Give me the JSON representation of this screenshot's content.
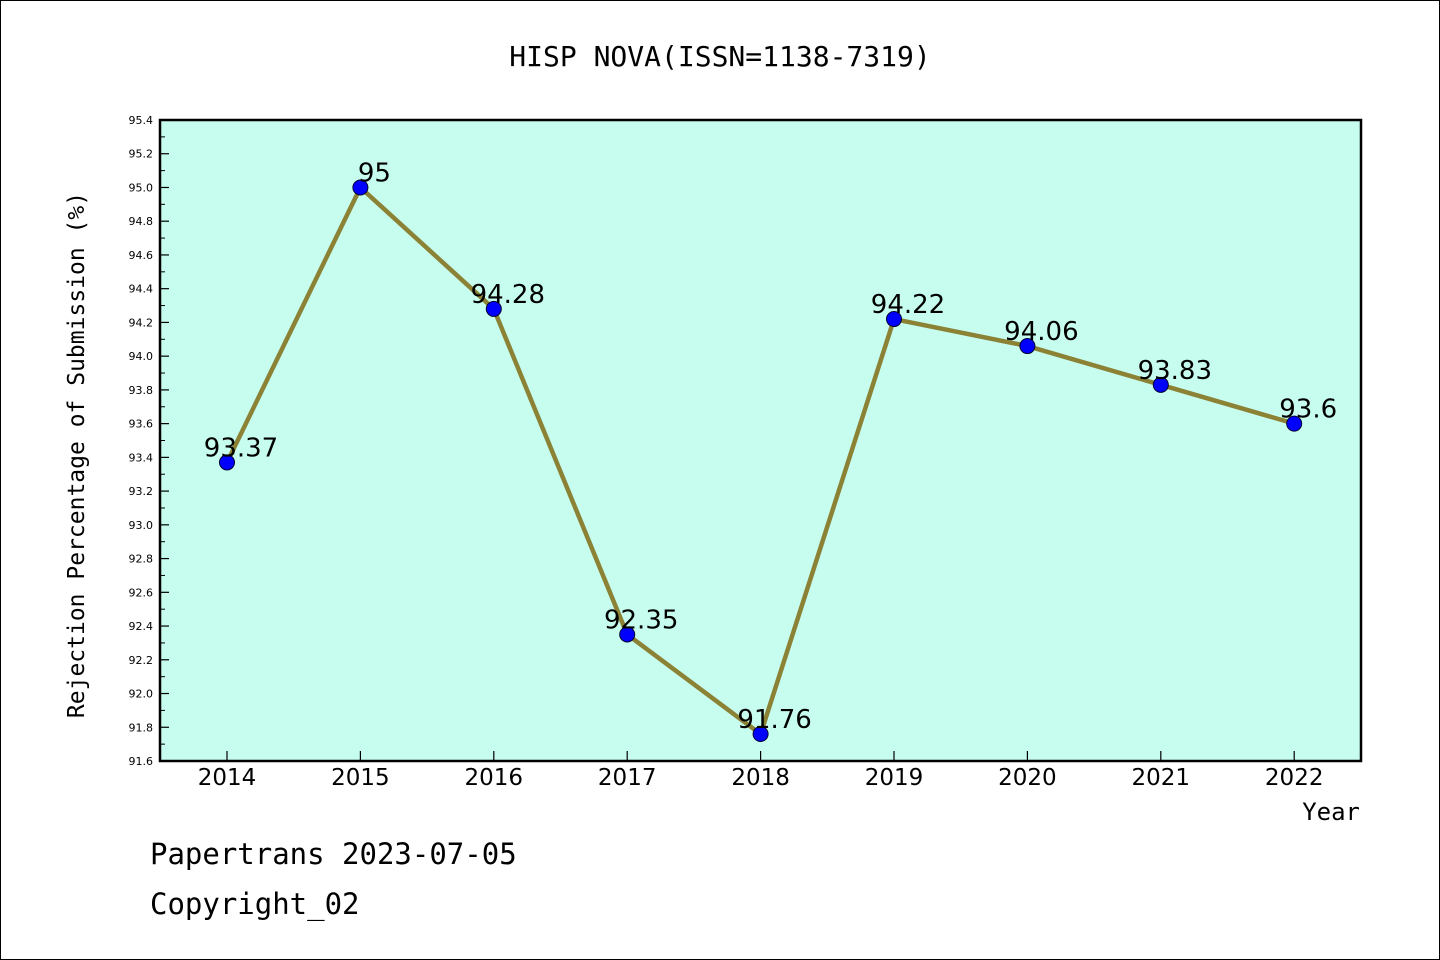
{
  "chart_data": {
    "type": "line",
    "title": "HISP NOVA(ISSN=1138-7319)",
    "xlabel": "Year",
    "ylabel": "Rejection Percentage of Submission (%)",
    "categories": [
      "2014",
      "2015",
      "2016",
      "2017",
      "2018",
      "2019",
      "2020",
      "2021",
      "2022"
    ],
    "values": [
      93.37,
      95,
      94.28,
      92.35,
      91.76,
      94.22,
      94.06,
      93.83,
      93.6
    ],
    "data_labels": [
      "93.37",
      "95",
      "94.28",
      "92.35",
      "91.76",
      "94.22",
      "94.06",
      "93.83",
      "93.6"
    ],
    "ylim": [
      91.6,
      95.4
    ],
    "yticks": [
      "91.6",
      "91.8",
      "92.0",
      "92.2",
      "92.4",
      "92.6",
      "92.8",
      "93.0",
      "93.2",
      "93.4",
      "93.6",
      "93.8",
      "94.0",
      "94.2",
      "94.4",
      "94.6",
      "94.8",
      "95.0",
      "95.2",
      "95.4"
    ],
    "grid": false,
    "colors": {
      "plot_background": "#c7fdee",
      "line": "#8b8236",
      "marker": "#0000ff",
      "axis": "#000000"
    }
  },
  "footer": {
    "line1": "Papertrans 2023-07-05",
    "line2": "Copyright_02"
  }
}
